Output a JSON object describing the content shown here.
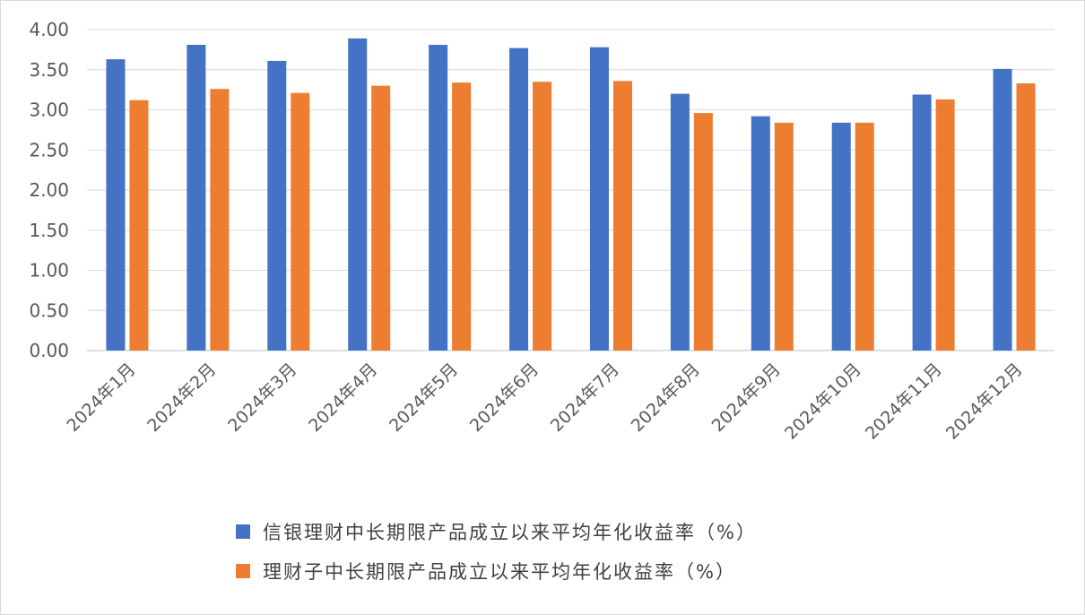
{
  "chart_data": {
    "type": "bar",
    "categories": [
      "2024年1月",
      "2024年2月",
      "2024年3月",
      "2024年4月",
      "2024年5月",
      "2024年6月",
      "2024年7月",
      "2024年8月",
      "2024年9月",
      "2024年10月",
      "2024年11月",
      "2024年12月"
    ],
    "series": [
      {
        "name": "信银理财中长期限产品成立以来平均年化收益率（%）",
        "color": "#4472c4",
        "values": [
          3.63,
          3.81,
          3.61,
          3.89,
          3.81,
          3.77,
          3.78,
          3.2,
          2.92,
          2.84,
          3.19,
          3.51
        ]
      },
      {
        "name": "理财子中长期限产品成立以来平均年化收益率（%）",
        "color": "#ed7d31",
        "values": [
          3.12,
          3.26,
          3.21,
          3.3,
          3.34,
          3.35,
          3.36,
          2.96,
          2.84,
          2.84,
          3.13,
          3.33
        ]
      }
    ],
    "yticks": [
      "0.00",
      "0.50",
      "1.00",
      "1.50",
      "2.00",
      "2.50",
      "3.00",
      "3.50",
      "4.00"
    ],
    "ylim": [
      0,
      4
    ],
    "grid": true,
    "legend_position": "bottom"
  }
}
